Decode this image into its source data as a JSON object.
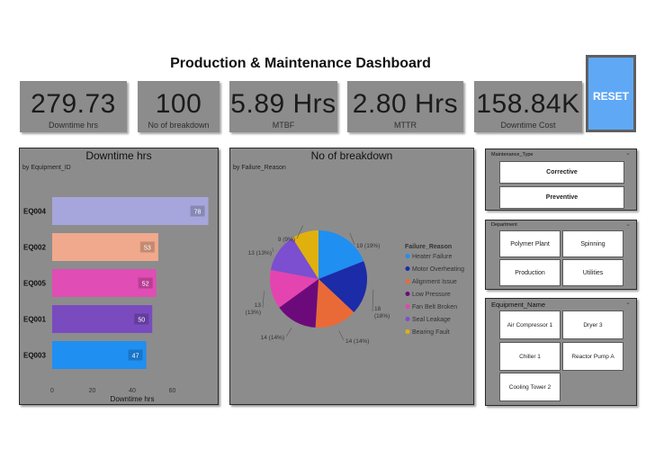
{
  "dashboard": {
    "title": "Production & Maintenance Dashboard",
    "reset_label": "RESET"
  },
  "kpis": [
    {
      "value": "279.73",
      "label": "Downtime hrs"
    },
    {
      "value": "100",
      "label": "No of breakdown"
    },
    {
      "value": "5.89 Hrs",
      "label": "MTBF"
    },
    {
      "value": "2.80 Hrs",
      "label": "MTTR"
    },
    {
      "value": "158.84K",
      "label": "Downtime Cost"
    }
  ],
  "bar_panel": {
    "title": "Downtime hrs",
    "subtitle": "by Equipment_ID"
  },
  "pie_panel": {
    "title": "No of breakdown",
    "subtitle": "by Failure_Reason"
  },
  "chart_data": [
    {
      "type": "bar",
      "orientation": "horizontal",
      "title": "Downtime hrs",
      "subtitle": "by Equipment_ID",
      "xlabel": "Downtime hrs",
      "categories": [
        "EQ004",
        "EQ002",
        "EQ005",
        "EQ001",
        "EQ003"
      ],
      "values": [
        78,
        53,
        52,
        50,
        47
      ],
      "colors": [
        "#a6a6dc",
        "#f0a98c",
        "#e04db4",
        "#7a4bbf",
        "#1f8ff2"
      ],
      "xticks": [
        "0",
        "20",
        "40",
        "60"
      ],
      "xlim": [
        0,
        80
      ],
      "data_labels": true
    },
    {
      "type": "pie",
      "title": "No of breakdown",
      "subtitle": "by Failure_Reason",
      "legend_title": "Failure_Reason",
      "legend_position": "right",
      "labels": [
        "Heater Failure",
        "Motor Overheating",
        "Alignment Issue",
        "Low Pressure",
        "Fan Belt Broken",
        "Seal Leakage",
        "Bearing Fault"
      ],
      "values": [
        19,
        18,
        14,
        14,
        13,
        13,
        9
      ],
      "slice_labels": [
        "19 (19%)",
        "18 (18%)",
        "14 (14%)",
        "14 (14%)",
        "13 (13%)",
        "13 (13%)",
        "9 (9%)"
      ],
      "colors": [
        "#1f8ff2",
        "#1c2ba8",
        "#ea6a37",
        "#6d0a7b",
        "#e444b0",
        "#7b4fcf",
        "#e0b10e"
      ]
    }
  ],
  "slicers": {
    "maintenance": {
      "title": "Maintenance_Type",
      "items": [
        "Corrective",
        "Preventive"
      ]
    },
    "department": {
      "title": "Department",
      "items": [
        "Polymer Plant",
        "Spinning",
        "Production",
        "Utilities"
      ]
    },
    "equipment": {
      "title": "Equipment_Name",
      "items": [
        "Air Compressor 1",
        "Dryer 3",
        "Chiller 1",
        "Reactor Pump A",
        "Cooling Tower 2"
      ]
    }
  }
}
